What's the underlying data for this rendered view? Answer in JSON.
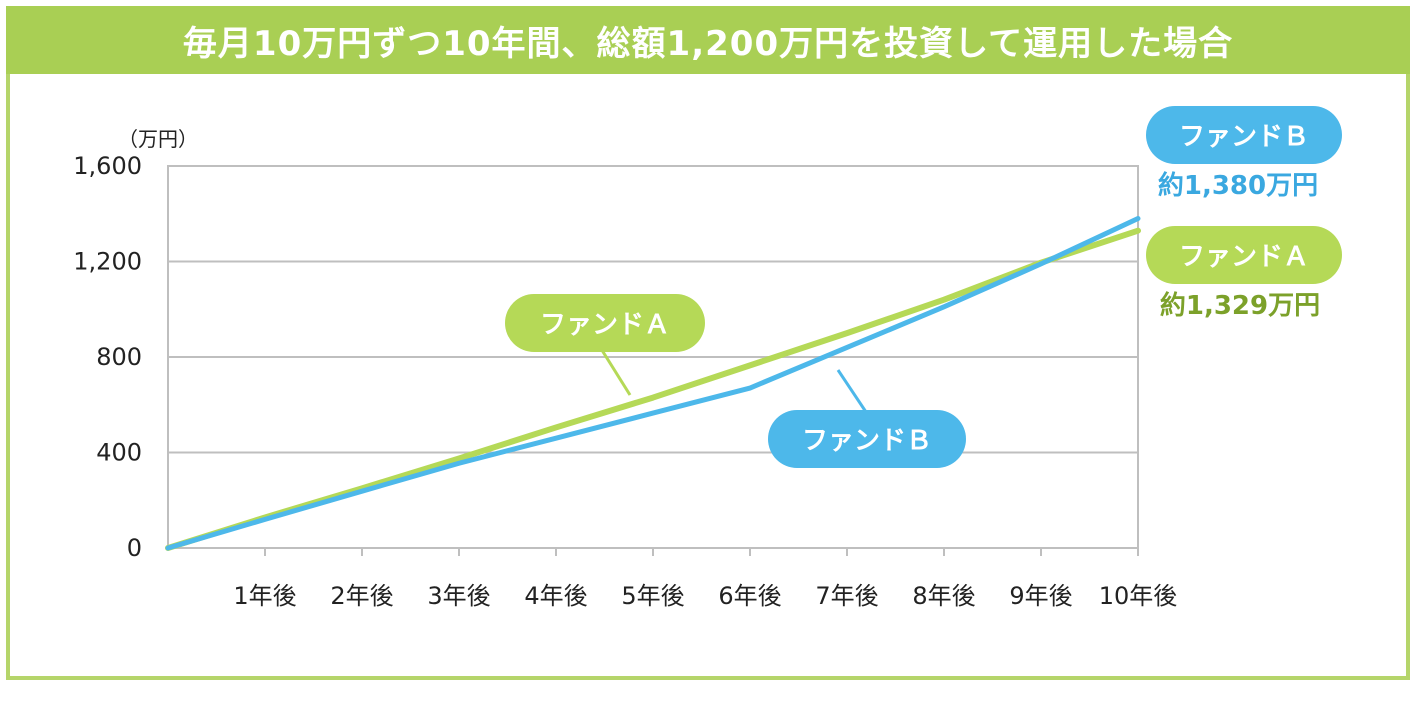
{
  "chart_data": {
    "type": "line",
    "title": "毎月10万円ずつ10年間、総額1,200万円を投資して運用した場合",
    "ylabel": "（万円）",
    "ylim": [
      0,
      1600
    ],
    "yticks": [
      0,
      400,
      800,
      1200,
      1600
    ],
    "ytick_labels": [
      "0",
      "400",
      "800",
      "1,200",
      "1,600"
    ],
    "categories": [
      "1年後",
      "2年後",
      "3年後",
      "4年後",
      "5年後",
      "6年後",
      "7年後",
      "8年後",
      "9年後",
      "10年後"
    ],
    "x": [
      0,
      1,
      2,
      3,
      4,
      5,
      6,
      7,
      8,
      9,
      10
    ],
    "series": [
      {
        "name": "ファンドA",
        "color": "#b5d957",
        "values": [
          0,
          128,
          250,
          375,
          505,
          630,
          765,
          900,
          1040,
          1195,
          1329
        ]
      },
      {
        "name": "ファンドB",
        "color": "#4db8ea",
        "values": [
          0,
          120,
          238,
          355,
          460,
          565,
          670,
          840,
          1010,
          1190,
          1380
        ]
      }
    ],
    "legend": {
      "fund_b_label": "ファンドＢ",
      "fund_b_amount": "約1,380万円",
      "fund_a_label": "ファンドＡ",
      "fund_a_amount": "約1,329万円",
      "fund_a_inline": "ファンドＡ",
      "fund_b_inline": "ファンドＢ"
    },
    "grid": true
  },
  "colors": {
    "header_bg": "#a9cf54",
    "fund_a": "#b5d957",
    "fund_a_text": "#7ca12a",
    "fund_b": "#4db8ea",
    "fund_b_text": "#3aa8e0",
    "grid": "#bfbfbf"
  }
}
